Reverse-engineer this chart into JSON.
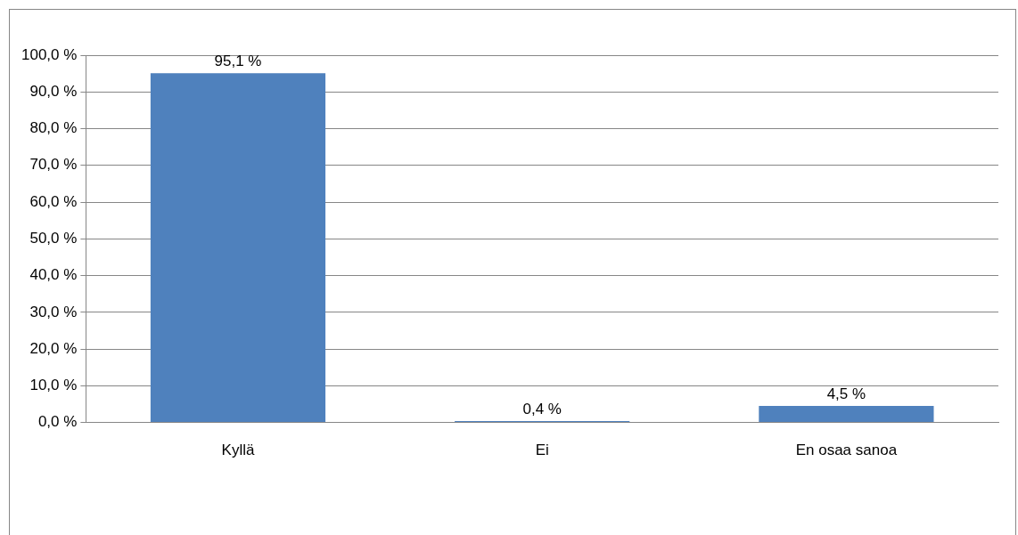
{
  "chart_data": {
    "type": "bar",
    "categories": [
      "Kyllä",
      "Ei",
      "En osaa sanoa"
    ],
    "values": [
      95.1,
      0.4,
      4.5
    ],
    "color": "#4f81bd",
    "value_labels": [
      "95,1 %",
      "0,4 %",
      "4,5 %"
    ],
    "ylim": [
      0,
      100
    ],
    "yticks": [
      {
        "value": 0,
        "label": "0,0 %"
      },
      {
        "value": 10,
        "label": "10,0 %"
      },
      {
        "value": 20,
        "label": "20,0 %"
      },
      {
        "value": 30,
        "label": "30,0 %"
      },
      {
        "value": 40,
        "label": "40,0 %"
      },
      {
        "value": 50,
        "label": "50,0 %"
      },
      {
        "value": 60,
        "label": "60,0 %"
      },
      {
        "value": 70,
        "label": "70,0 %"
      },
      {
        "value": 80,
        "label": "80,0 %"
      },
      {
        "value": 90,
        "label": "90,0 %"
      },
      {
        "value": 100,
        "label": "100,0 %"
      }
    ],
    "grid": "y",
    "legend": false
  }
}
